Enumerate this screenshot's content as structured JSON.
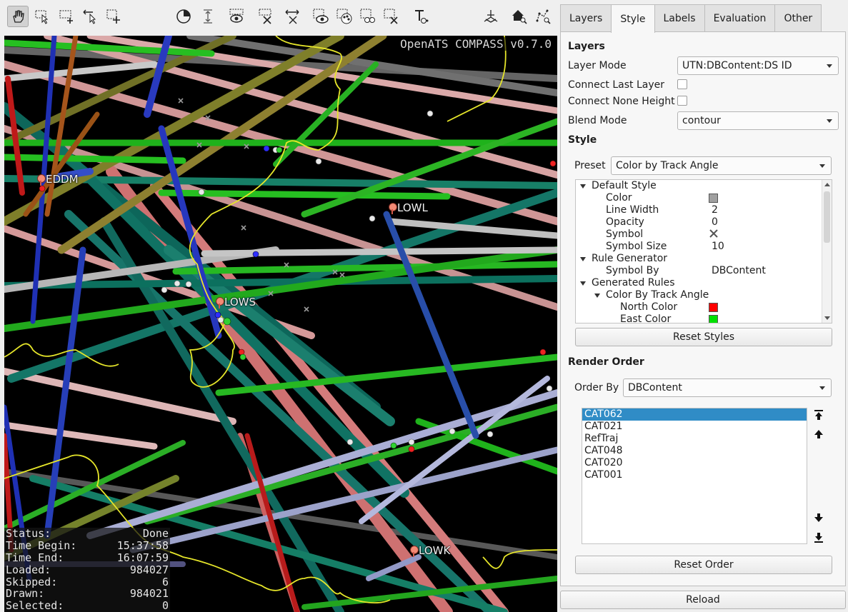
{
  "toolbar": {
    "left_tools": [
      {
        "icon": "navigate-hand-icon",
        "active": true
      },
      {
        "icon": "select-add-icon"
      },
      {
        "icon": "select-rect-add-icon"
      },
      {
        "icon": "select-move-icon"
      },
      {
        "icon": "select-rect-icon"
      }
    ],
    "middle_tools": [
      {
        "icon": "time-filter-icon"
      },
      {
        "icon": "height-filter-icon"
      },
      {
        "icon": "show-selected-icon"
      },
      {
        "icon": "clear-selection-icon"
      },
      {
        "icon": "toggle-selection-icon"
      },
      {
        "icon": "show-labels-icon"
      },
      {
        "icon": "color-labels-icon"
      },
      {
        "icon": "measure-icon"
      },
      {
        "icon": "clear-measure-icon"
      },
      {
        "icon": "text-tool-icon"
      }
    ],
    "right_tools": [
      {
        "icon": "axis-3d-icon"
      },
      {
        "icon": "home-zoom-icon"
      },
      {
        "icon": "graph-zoom-icon"
      }
    ]
  },
  "map": {
    "watermark": "OpenATS COMPASS v0.7.0",
    "airports": [
      "EDDM",
      "LOWL",
      "LOWS",
      "LOWK"
    ]
  },
  "status": {
    "rows": [
      {
        "label": "Status:",
        "value": "Done"
      },
      {
        "label": "Time Begin:",
        "value": "15:37:58"
      },
      {
        "label": "Time End:",
        "value": "16:07:59"
      },
      {
        "label": "Loaded:",
        "value": "984027"
      },
      {
        "label": "Skipped:",
        "value": "6"
      },
      {
        "label": "Drawn:",
        "value": "984021"
      },
      {
        "label": "Selected:",
        "value": "0"
      }
    ]
  },
  "tabs": [
    "Layers",
    "Style",
    "Labels",
    "Evaluation",
    "Other"
  ],
  "active_tab": "Style",
  "layers": {
    "title": "Layers",
    "layer_mode_label": "Layer Mode",
    "layer_mode_value": "UTN:DBContent:DS ID",
    "connect_last_label": "Connect Last Layer",
    "connect_none_label": "Connect None Height",
    "blend_mode_label": "Blend Mode",
    "blend_mode_value": "contour"
  },
  "style": {
    "title": "Style",
    "preset_label": "Preset",
    "preset_value": "Color by Track Angle",
    "tree": [
      {
        "label": "Default Style",
        "level": 0,
        "caret": true
      },
      {
        "label": "Color",
        "level": 1,
        "value": "",
        "swatch": "#a0a0a0"
      },
      {
        "label": "Line Width",
        "level": 1,
        "value": "2"
      },
      {
        "label": "Opacity",
        "level": 1,
        "value": "0"
      },
      {
        "label": "Symbol",
        "level": 1,
        "value": "",
        "symbol": "x-icon"
      },
      {
        "label": "Symbol Size",
        "level": 1,
        "value": "10"
      },
      {
        "label": "Rule Generator",
        "level": 0,
        "caret": true
      },
      {
        "label": "Symbol By",
        "level": 1,
        "value": "DBContent"
      },
      {
        "label": "Generated Rules",
        "level": 0,
        "caret": true
      },
      {
        "label": "Color By Track Angle",
        "level": 1,
        "caret": true
      },
      {
        "label": "North Color",
        "level": 2,
        "value": "",
        "swatch": "#ff0000"
      },
      {
        "label": "East Color",
        "level": 2,
        "value": "",
        "swatch": "#00e000"
      }
    ],
    "reset_label": "Reset Styles"
  },
  "render_order": {
    "title": "Render Order",
    "order_by_label": "Order By",
    "order_by_value": "DBContent",
    "items": [
      "CAT062",
      "CAT021",
      "RefTraj",
      "CAT048",
      "CAT020",
      "CAT001"
    ],
    "selected_index": 0,
    "reset_label": "Reset Order"
  },
  "reload_label": "Reload"
}
